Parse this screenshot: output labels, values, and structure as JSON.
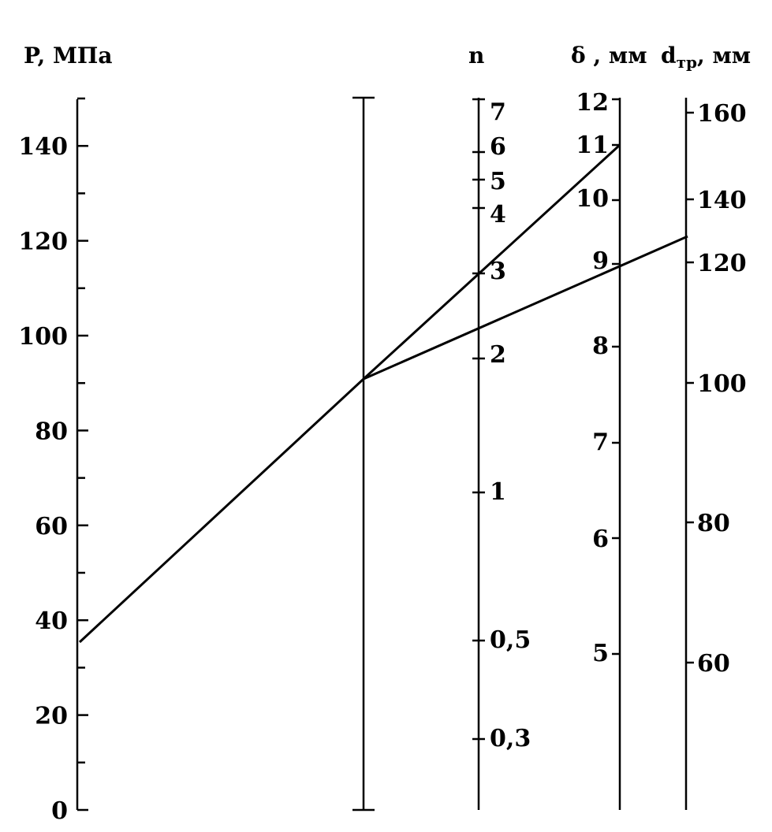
{
  "axes": {
    "p": {
      "title": "P, МПа",
      "unit": "МПа",
      "scale": "linear",
      "range": [
        0,
        150
      ],
      "major_ticks": [
        "0",
        "20",
        "40",
        "60",
        "80",
        "100",
        "120",
        "140"
      ],
      "minor_tick_step": 10
    },
    "pivot": {
      "title": ""
    },
    "n": {
      "title": "n",
      "scale": "log",
      "tick_labels": [
        "7",
        "6",
        "5",
        "4",
        "3",
        "2",
        "1",
        "0,5",
        "0,3"
      ]
    },
    "delta": {
      "title": "δ , мм",
      "unit": "мм",
      "tick_labels": [
        "12",
        "11",
        "10",
        "9",
        "8",
        "7",
        "6",
        "5"
      ]
    },
    "dtr": {
      "title_main": "d",
      "title_sub": "тр",
      "title_unit": ", мм",
      "tick_labels": [
        "160",
        "140",
        "120",
        "100",
        "80",
        "60"
      ]
    }
  },
  "chart_data": {
    "type": "nomogram",
    "scales": [
      {
        "name": "P, МПа",
        "ticks": [
          0,
          20,
          40,
          60,
          80,
          100,
          120,
          140
        ]
      },
      {
        "name": "n",
        "ticks": [
          7,
          6,
          5,
          4,
          3,
          2,
          1,
          0.5,
          0.3
        ]
      },
      {
        "name": "δ , мм",
        "ticks": [
          12,
          11,
          10,
          9,
          8,
          7,
          6,
          5
        ]
      },
      {
        "name": "d тр, мм",
        "ticks": [
          160,
          140,
          120,
          100,
          80,
          60
        ]
      }
    ],
    "key_lines": [
      {
        "from_scale": "P, МПа",
        "from_value": 35,
        "through": "pivot",
        "to_scale": "δ , мм",
        "to_value": 11,
        "crosses_n": 3
      },
      {
        "from_scale": "pivot",
        "to_scale": "d тр, мм",
        "to_value": 125,
        "crosses_delta": 9
      }
    ]
  }
}
